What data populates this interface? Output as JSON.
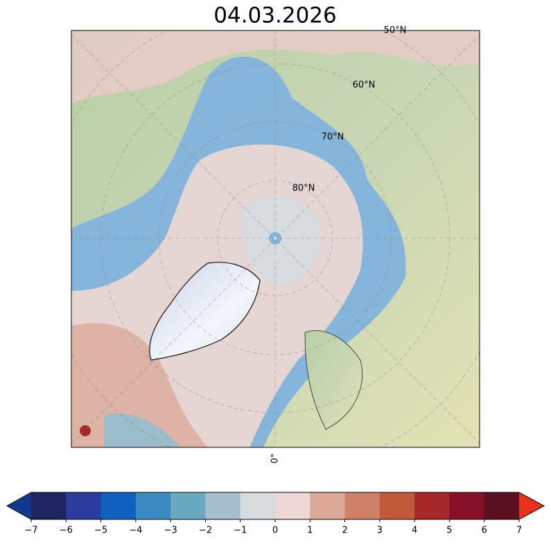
{
  "map": {
    "title": "04.03.2026",
    "lat_labels": [
      "50°N",
      "60°N",
      "70°N",
      "80°N"
    ],
    "lon_label": "0°"
  },
  "colorbar": {
    "lim": [
      -7,
      7
    ],
    "ticks": [
      {
        "value": -7,
        "label": "−7"
      },
      {
        "value": -6,
        "label": "−6"
      },
      {
        "value": -5,
        "label": "−5"
      },
      {
        "value": -4,
        "label": "−4"
      },
      {
        "value": -3,
        "label": "−3"
      },
      {
        "value": -2,
        "label": "−2"
      },
      {
        "value": -1,
        "label": "−1"
      },
      0,
      1,
      2,
      3,
      4,
      5,
      6,
      7
    ],
    "colors": [
      "#1f2560",
      "#2c3c9e",
      "#1060c0",
      "#3a8ac0",
      "#6aa9c0",
      "#a6bfcc",
      "#d8dcdf",
      "#ecd8d5",
      "#dca898",
      "#cf8068",
      "#c05a3b",
      "#a62828",
      "#851028",
      "#5a1020"
    ],
    "extend_colors": [
      "#123a8c",
      "#e8301a"
    ]
  }
}
